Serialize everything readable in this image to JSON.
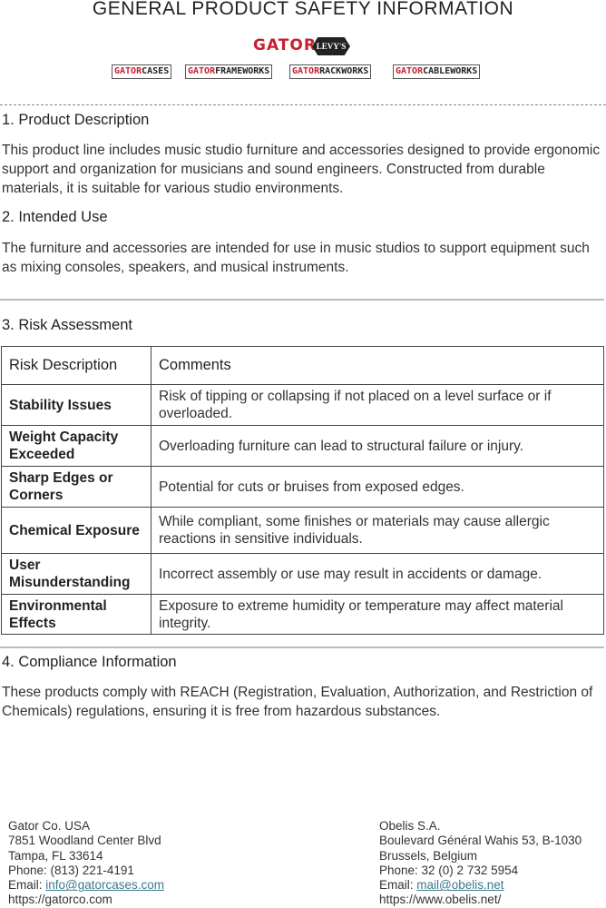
{
  "title": "GENERAL PRODUCT SAFETY INFORMATION",
  "logos": {
    "gator": "GATOR",
    "levys": "LEVY'S",
    "brands": [
      {
        "a": "GATOR",
        "b": "CASES"
      },
      {
        "a": "GATOR",
        "b": "FRAMEWORKS"
      },
      {
        "a": "GATOR",
        "b": "RACKWORKS"
      },
      {
        "a": "GATOR",
        "b": "CABLEWORKS"
      }
    ]
  },
  "sections": {
    "s1": {
      "heading": "1. Product Description",
      "text": "This product line includes music studio furniture and accessories designed to provide ergonomic support and organization for musicians and sound engineers. Constructed from durable materials, it is suitable for various studio environments."
    },
    "s2": {
      "heading": "2. Intended Use",
      "text": "The furniture and accessories are intended for use in music studios to support equipment such as mixing consoles, speakers, and musical instruments."
    },
    "s3": {
      "heading": "3. Risk Assessment"
    },
    "s4": {
      "heading": "4. Compliance Information",
      "text": "These products comply with REACH (Registration, Evaluation, Authorization, and Restriction of Chemicals) regulations, ensuring it is free from hazardous substances."
    }
  },
  "risk_table": {
    "headers": [
      "Risk Description",
      "Comments"
    ],
    "rows": [
      [
        "Stability Issues",
        "Risk of tipping or collapsing if not placed on a level surface or if overloaded."
      ],
      [
        "Weight Capacity Exceeded",
        "Overloading furniture can lead to structural failure or injury."
      ],
      [
        "Sharp Edges or Corners",
        "Potential for cuts or bruises from exposed edges."
      ],
      [
        "Chemical Exposure",
        "While compliant, some finishes or materials may cause allergic reactions in sensitive individuals."
      ],
      [
        "User Misunderstanding",
        "Incorrect assembly or use may result in accidents or damage."
      ],
      [
        "Environmental Effects",
        "Exposure to extreme humidity or temperature may affect material integrity."
      ]
    ]
  },
  "footer": {
    "left": {
      "name": "Gator Co. USA",
      "address": "7851 Woodland Center Blvd",
      "city": "Tampa, FL 33614",
      "phone": "Phone: (813) 221-4191",
      "email_label": "Email: ",
      "email": "info@gatorcases.com",
      "web": "https://gatorco.com"
    },
    "right": {
      "name": "Obelis S.A.",
      "address": "Boulevard Général Wahis 53, B-1030",
      "city": "Brussels, Belgium",
      "phone": "Phone: 32 (0) 2 732 5954",
      "email_label": "Email: ",
      "email": "mail@obelis.net",
      "web": "https://www.obelis.net/"
    }
  }
}
